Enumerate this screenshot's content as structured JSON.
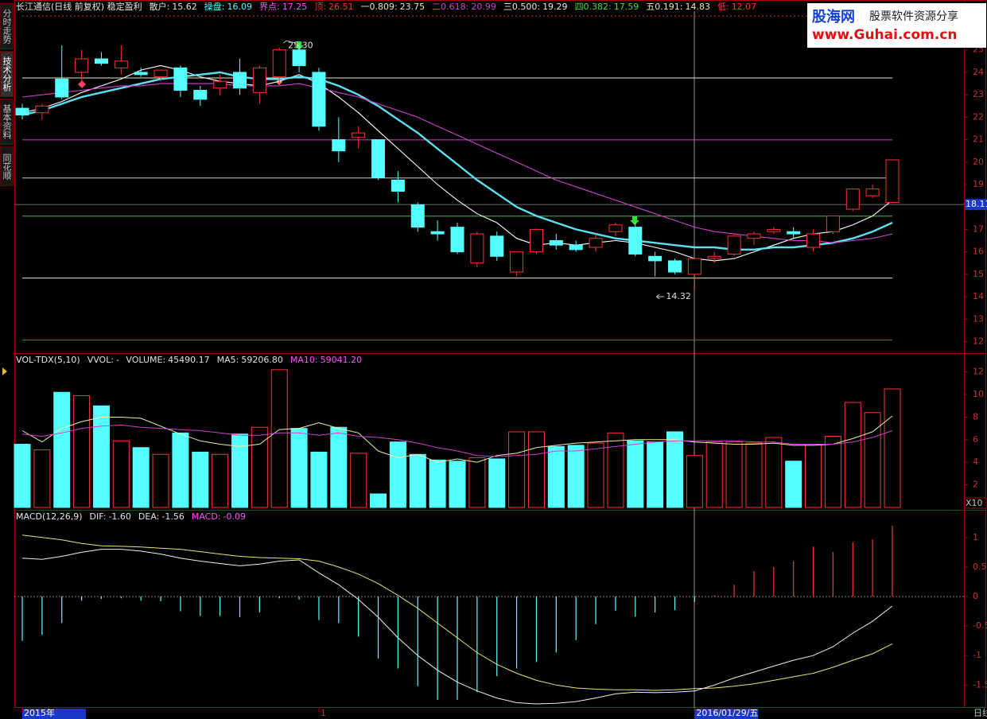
{
  "ui": {
    "sidebar_tabs": [
      "分时走势",
      "技术分析",
      "基本资料",
      "同花顺"
    ],
    "logo": {
      "name": "股海网",
      "tagline": "股票软件资源分享",
      "url": "www.Guhai.com.cn"
    },
    "period": "日线"
  },
  "chart_data": [
    {
      "type": "candlestick",
      "title": "长江通信(日线 前复权) 稳定盈利",
      "categories": [
        "2015年",
        null,
        null,
        null,
        null,
        null,
        null,
        null,
        null,
        null,
        null,
        null,
        null,
        null,
        null,
        "1",
        null,
        null,
        null,
        null,
        null,
        null,
        null,
        null,
        null,
        null,
        null,
        null,
        null,
        null,
        null,
        null,
        null,
        null,
        "2016/01/29/五",
        null,
        null,
        null,
        null,
        null,
        null,
        null,
        null,
        null,
        null
      ],
      "open": [
        22.4,
        22.2,
        23.7,
        24.0,
        24.6,
        24.2,
        24.0,
        23.8,
        24.2,
        23.2,
        23.3,
        24.0,
        23.1,
        23.8,
        25.0,
        24.0,
        21.0,
        21.1,
        21.0,
        19.2,
        18.1,
        16.9,
        17.1,
        15.5,
        16.7,
        15.1,
        16.0,
        16.5,
        16.3,
        16.2,
        16.9,
        17.1,
        15.8,
        15.6,
        15.0,
        15.7,
        15.9,
        16.6,
        16.9,
        16.9,
        16.2,
        16.9,
        17.9,
        18.5,
        18.2
      ],
      "high": [
        22.6,
        22.6,
        25.2,
        25.0,
        24.9,
        25.2,
        24.2,
        24.1,
        24.3,
        23.4,
        23.9,
        24.6,
        24.3,
        25.1,
        25.3,
        24.2,
        22.0,
        21.6,
        21.0,
        19.6,
        18.2,
        17.4,
        17.3,
        16.9,
        16.9,
        16.0,
        17.0,
        16.8,
        16.5,
        16.8,
        17.3,
        17.3,
        16.0,
        15.7,
        15.7,
        16.0,
        16.8,
        16.9,
        17.1,
        17.1,
        17.0,
        17.6,
        18.8,
        19.0,
        20.1
      ],
      "low": [
        21.9,
        21.9,
        22.8,
        23.6,
        24.3,
        23.9,
        23.8,
        23.6,
        22.9,
        22.5,
        23.0,
        23.0,
        22.6,
        23.5,
        24.0,
        21.4,
        20.0,
        20.6,
        19.2,
        18.2,
        16.9,
        16.5,
        15.9,
        15.3,
        15.6,
        14.9,
        15.9,
        16.1,
        16.0,
        16.0,
        16.7,
        15.8,
        14.9,
        15.0,
        14.32,
        15.5,
        15.8,
        16.3,
        16.8,
        16.6,
        16.0,
        16.8,
        17.8,
        18.4,
        18.2
      ],
      "close": [
        22.1,
        22.5,
        22.9,
        24.6,
        24.4,
        24.5,
        23.9,
        24.1,
        23.2,
        22.8,
        23.6,
        23.3,
        24.2,
        25.0,
        24.3,
        21.6,
        20.5,
        21.3,
        19.3,
        18.7,
        17.1,
        16.8,
        16.0,
        16.8,
        15.8,
        16.0,
        17.0,
        16.3,
        16.1,
        16.6,
        17.2,
        15.9,
        15.6,
        15.1,
        15.7,
        15.8,
        16.7,
        16.8,
        17.0,
        16.8,
        16.8,
        17.6,
        18.8,
        18.8,
        20.1
      ],
      "series": [
        {
          "color": "#ffffff",
          "values": [
            22.2,
            22.4,
            22.7,
            23.1,
            23.4,
            23.7,
            24.1,
            24.3,
            24.1,
            23.8,
            23.6,
            23.5,
            23.4,
            23.6,
            23.9,
            23.5,
            22.9,
            22.2,
            21.4,
            20.6,
            19.8,
            19.0,
            18.3,
            17.7,
            17.3,
            16.6,
            16.3,
            16.4,
            16.3,
            16.4,
            16.5,
            16.4,
            16.2,
            16.0,
            15.7,
            15.6,
            15.7,
            16.0,
            16.3,
            16.6,
            16.8,
            16.9,
            17.2,
            17.6,
            18.3
          ]
        },
        {
          "color": "#5ce0f0",
          "values": [
            22.1,
            22.3,
            22.6,
            22.9,
            23.1,
            23.3,
            23.5,
            23.7,
            23.8,
            23.9,
            24.0,
            23.8,
            23.7,
            23.7,
            23.8,
            23.7,
            23.4,
            23.0,
            22.5,
            21.9,
            21.3,
            20.6,
            19.9,
            19.2,
            18.6,
            18.0,
            17.6,
            17.3,
            17.0,
            16.8,
            16.6,
            16.5,
            16.4,
            16.3,
            16.2,
            16.2,
            16.1,
            16.1,
            16.2,
            16.2,
            16.3,
            16.4,
            16.6,
            16.9,
            17.3
          ]
        },
        {
          "color": "#d040d0",
          "values": [
            22.9,
            23.0,
            23.1,
            23.2,
            23.3,
            23.4,
            23.4,
            23.5,
            23.5,
            23.5,
            23.5,
            23.4,
            23.4,
            23.4,
            23.5,
            23.3,
            23.1,
            22.9,
            22.6,
            22.3,
            22.0,
            21.6,
            21.2,
            20.8,
            20.4,
            20.0,
            19.6,
            19.2,
            18.9,
            18.6,
            18.3,
            18.0,
            17.7,
            17.4,
            17.1,
            16.9,
            16.8,
            16.7,
            16.6,
            16.5,
            16.5,
            16.4,
            16.5,
            16.6,
            16.8
          ]
        }
      ],
      "up_color": "#ff3232",
      "down_color": "#54ffff",
      "indicators": [
        {
          "label": "散户:",
          "value": 15.62,
          "color": "#e0e0e0"
        },
        {
          "label": "操盘:",
          "value": 16.09,
          "color": "#54ffff"
        },
        {
          "label": "界点:",
          "value": 17.25,
          "color": "#ff50ff"
        }
      ],
      "levels": [
        {
          "label": "顶:",
          "value": 26.51,
          "color": "#ff3232",
          "style": "dotted"
        },
        {
          "label": "一0.809:",
          "value": 23.75,
          "color": "#e8e8c0"
        },
        {
          "label": "二0.618:",
          "value": 20.99,
          "color": "#d040d0"
        },
        {
          "label": "三0.500:",
          "value": 19.29,
          "color": "#e8e8e8"
        },
        {
          "label": "四0.382:",
          "value": 17.59,
          "color": "#40e040"
        },
        {
          "label": "五0.191:",
          "value": 14.83,
          "color": "#e8e8c0"
        },
        {
          "label": "低:",
          "value": 12.07,
          "color": "#ff3232"
        }
      ],
      "high_label": {
        "value": 25.3,
        "label": "25.30"
      },
      "low_label": {
        "value": 14.32,
        "label": "14.32"
      },
      "last_price": 18.11,
      "ylim": [
        11.52,
        26.87
      ],
      "yticks": [
        12,
        13,
        14,
        15,
        16,
        17,
        18,
        19,
        20,
        21,
        22,
        23,
        24,
        25
      ]
    },
    {
      "type": "bar",
      "title": "VOL-TDX(5,10)",
      "readouts": [
        {
          "label": "VVOL:",
          "text": "-",
          "color": "#e0e0e0"
        },
        {
          "label": "VOLUME:",
          "value": 45490.17,
          "color": "#e0e0e0"
        },
        {
          "label": "MA5:",
          "value": 59206.8,
          "value_label": "59206.80",
          "color": "#e0e0e0"
        },
        {
          "label": "MA10:",
          "value": 59041.2,
          "value_label": "59041.20",
          "color": "#ff50ff"
        }
      ],
      "values": [
        5.6,
        5.1,
        10.2,
        9.9,
        9.0,
        5.9,
        5.3,
        4.7,
        6.6,
        4.9,
        4.7,
        6.5,
        7.1,
        12.2,
        7.0,
        4.9,
        7.1,
        4.8,
        1.2,
        5.8,
        4.7,
        4.2,
        4.1,
        4.4,
        4.3,
        6.7,
        6.7,
        5.4,
        5.5,
        5.7,
        6.6,
        5.9,
        5.8,
        6.7,
        4.6,
        5.8,
        5.8,
        5.7,
        6.2,
        4.1,
        5.6,
        6.3,
        9.3,
        8.4,
        10.5
      ],
      "series": [
        {
          "color": "#f0f0a0",
          "values": [
            6.8,
            5.8,
            7.0,
            7.6,
            8.0,
            8.0,
            7.9,
            7.2,
            6.5,
            5.9,
            5.6,
            5.4,
            5.6,
            6.9,
            7.0,
            7.5,
            7.0,
            6.6,
            5.0,
            4.4,
            4.7,
            4.0,
            4.3,
            4.0,
            4.6,
            4.8,
            5.3,
            5.5,
            5.7,
            5.8,
            5.9,
            6.0,
            6.0,
            6.0,
            5.8,
            5.7,
            5.6,
            5.6,
            5.7,
            5.5,
            5.5,
            5.6,
            6.1,
            6.7,
            8.1
          ]
        },
        {
          "color": "#d040d0",
          "values": [
            6.5,
            6.3,
            6.6,
            7.0,
            7.2,
            7.3,
            7.1,
            7.0,
            6.9,
            6.8,
            6.6,
            6.4,
            6.4,
            6.6,
            6.6,
            6.4,
            6.6,
            6.3,
            6.2,
            6.0,
            5.7,
            5.3,
            5.0,
            4.6,
            4.5,
            4.6,
            4.7,
            5.0,
            5.0,
            5.2,
            5.4,
            5.6,
            5.8,
            5.9,
            5.9,
            5.9,
            5.9,
            5.8,
            5.8,
            5.6,
            5.6,
            5.6,
            5.8,
            6.2,
            6.8
          ]
        }
      ],
      "unit_label": "X10",
      "ylim": [
        0,
        12.4
      ],
      "yticks": [
        2,
        4,
        6,
        8,
        10,
        12
      ]
    },
    {
      "type": "macd",
      "title": "MACD(12,26,9)",
      "readouts": [
        {
          "label": "DIF:",
          "value": -1.6,
          "value_label": "-1.60",
          "color": "#e0e0e0"
        },
        {
          "label": "DEA:",
          "value": -1.56,
          "color": "#e0e0e0"
        },
        {
          "label": "MACD:",
          "value": -0.09,
          "color": "#ff50ff"
        }
      ],
      "values": [
        -0.75,
        -0.65,
        -0.45,
        -0.07,
        -0.04,
        -0.03,
        -0.07,
        -0.08,
        -0.25,
        -0.33,
        -0.33,
        -0.35,
        -0.27,
        -0.03,
        -0.05,
        -0.4,
        -0.45,
        -0.68,
        -1.05,
        -1.22,
        -1.52,
        -1.75,
        -1.75,
        -1.62,
        -1.35,
        -1.22,
        -1.11,
        -0.95,
        -0.74,
        -0.47,
        -0.24,
        -0.34,
        -0.27,
        -0.23,
        -0.09,
        0.02,
        0.2,
        0.43,
        0.5,
        0.6,
        0.85,
        0.75,
        0.92,
        0.97,
        1.2
      ],
      "series": [
        {
          "color": "#f0f0f0",
          "values": [
            0.65,
            0.63,
            0.68,
            0.75,
            0.8,
            0.8,
            0.77,
            0.72,
            0.65,
            0.6,
            0.56,
            0.52,
            0.55,
            0.6,
            0.62,
            0.4,
            0.2,
            -0.05,
            -0.35,
            -0.7,
            -1.0,
            -1.25,
            -1.45,
            -1.6,
            -1.72,
            -1.8,
            -1.82,
            -1.81,
            -1.78,
            -1.72,
            -1.65,
            -1.62,
            -1.63,
            -1.62,
            -1.6,
            -1.5,
            -1.38,
            -1.28,
            -1.18,
            -1.08,
            -1.0,
            -0.85,
            -0.62,
            -0.42,
            -0.16
          ]
        },
        {
          "color": "#e8e870",
          "values": [
            1.04,
            1.0,
            0.96,
            0.9,
            0.86,
            0.85,
            0.84,
            0.82,
            0.8,
            0.76,
            0.72,
            0.68,
            0.66,
            0.65,
            0.64,
            0.6,
            0.5,
            0.38,
            0.22,
            0.02,
            -0.2,
            -0.45,
            -0.7,
            -0.95,
            -1.15,
            -1.3,
            -1.42,
            -1.5,
            -1.55,
            -1.57,
            -1.58,
            -1.58,
            -1.59,
            -1.58,
            -1.56,
            -1.55,
            -1.52,
            -1.48,
            -1.42,
            -1.36,
            -1.3,
            -1.2,
            -1.08,
            -0.97,
            -0.8
          ]
        }
      ],
      "up_color": "#ff3232",
      "down_color": "#54ffff",
      "ylim": [
        -1.86,
        1.24
      ],
      "yticks": [
        1,
        0.5,
        0,
        -0.5,
        -1,
        -1.5
      ]
    }
  ]
}
